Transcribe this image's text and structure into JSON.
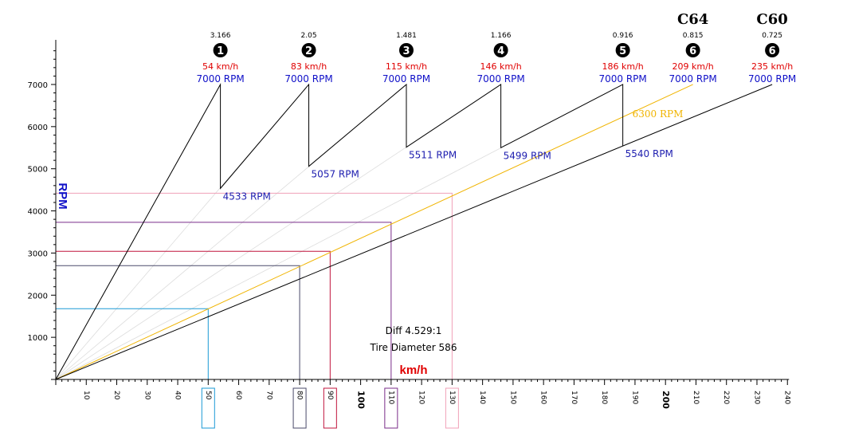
{
  "chart_data": {
    "type": "line",
    "xlabel": "km/h",
    "ylabel": "RPM",
    "xlim": [
      0,
      240
    ],
    "ylim": [
      0,
      7000
    ],
    "x_ticks": [
      10,
      20,
      30,
      40,
      50,
      60,
      70,
      80,
      90,
      100,
      110,
      120,
      130,
      140,
      150,
      160,
      170,
      180,
      190,
      200,
      210,
      220,
      230,
      240
    ],
    "y_ticks": [
      1000,
      2000,
      3000,
      4000,
      5000,
      6000,
      7000
    ],
    "bold_x_ticks": [
      100,
      200
    ],
    "grid": false,
    "info": [
      "Diff 4.529:1",
      "Tire Diameter 586"
    ],
    "gears": [
      {
        "number": "1",
        "ratio": "3.166",
        "top_speed": 54,
        "top_speed_label": "54 km/h",
        "top_rpm_label": "7000 RPM",
        "drop_rpm": 4533,
        "drop_rpm_label": "4533 RPM"
      },
      {
        "number": "2",
        "ratio": "2.05",
        "top_speed": 83,
        "top_speed_label": "83 km/h",
        "top_rpm_label": "7000 RPM",
        "drop_rpm": 5057,
        "drop_rpm_label": "5057 RPM"
      },
      {
        "number": "3",
        "ratio": "1.481",
        "top_speed": 115,
        "top_speed_label": "115 km/h",
        "top_rpm_label": "7000 RPM",
        "drop_rpm": 5511,
        "drop_rpm_label": "5511 RPM"
      },
      {
        "number": "4",
        "ratio": "1.166",
        "top_speed": 146,
        "top_speed_label": "146 km/h",
        "top_rpm_label": "7000 RPM",
        "drop_rpm": 5499,
        "drop_rpm_label": "5499 RPM"
      },
      {
        "number": "5",
        "ratio": "0.916",
        "top_speed": 186,
        "top_speed_label": "186 km/h",
        "top_rpm_label": "7000 RPM",
        "drop_rpm": 5540,
        "drop_rpm_label": "5540 RPM"
      }
    ],
    "sixth_gears": [
      {
        "name": "C64",
        "number": "6",
        "ratio": "0.815",
        "top_speed": 209,
        "top_speed_label": "209 km/h",
        "top_rpm_label": "7000 RPM",
        "color": "#f0b400"
      },
      {
        "name": "C60",
        "number": "6",
        "ratio": "0.725",
        "top_speed": 235,
        "top_speed_label": "235 km/h",
        "top_rpm_label": "7000 RPM",
        "color": "#000000"
      }
    ],
    "annotation_rpm": 6300,
    "annotation_rpm_label": "6300 RPM",
    "markers": [
      {
        "speed": 50,
        "rpm": 1680,
        "color": "#1a9ad6"
      },
      {
        "speed": 80,
        "rpm": 2700,
        "color": "#4a4a6a"
      },
      {
        "speed": 90,
        "rpm": 3040,
        "color": "#c0143c"
      },
      {
        "speed": 110,
        "rpm": 3730,
        "color": "#7a2c8a"
      },
      {
        "speed": 130,
        "rpm": 4420,
        "color": "#f0a0b8"
      }
    ],
    "colors": {
      "speed": "#e00000",
      "rpm": "#1010c8",
      "drop_label": "#2020b0",
      "xlabel": "#e00000",
      "ylabel": "#1010c8"
    }
  }
}
